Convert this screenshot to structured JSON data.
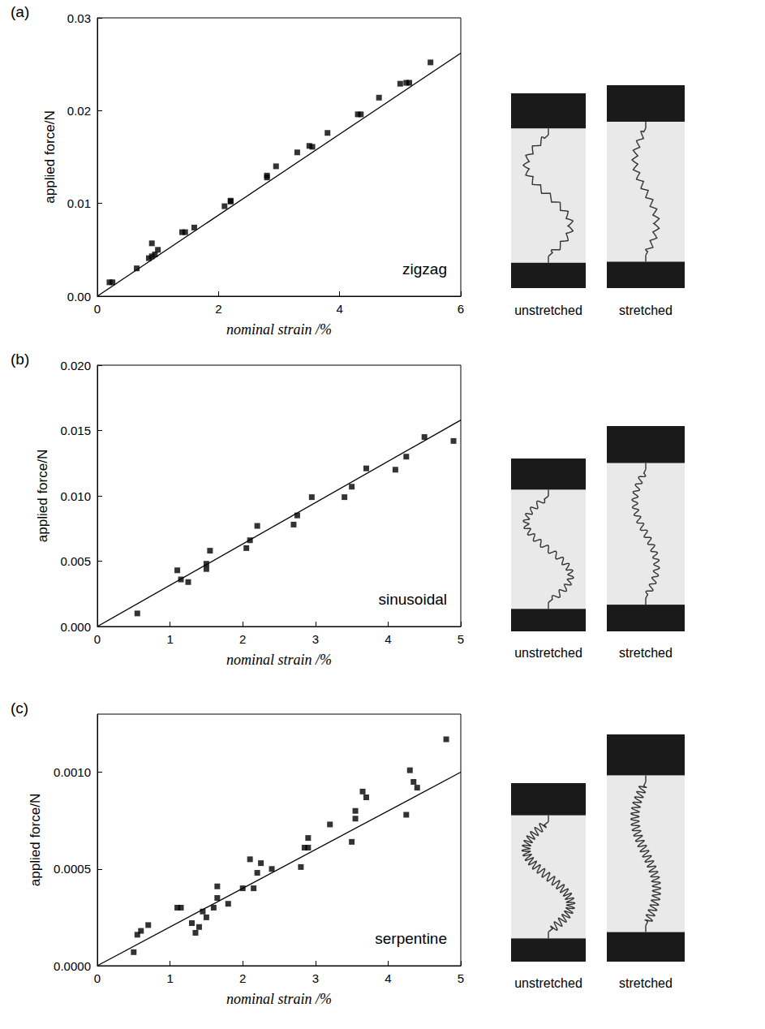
{
  "chart_data": [
    {
      "type": "scatter",
      "panel": "(a)",
      "annotation": "zigzag",
      "x_label": "nominal strain /%",
      "y_label": "applied force/N",
      "xlim": [
        0,
        6
      ],
      "xticks": [
        0,
        2,
        4,
        6
      ],
      "ylim": [
        0,
        0.03
      ],
      "yticks": [
        {
          "value": 0,
          "label": "0.00"
        },
        {
          "value": 0.01,
          "label": "0.01"
        },
        {
          "value": 0.02,
          "label": "0.02"
        },
        {
          "value": 0.03,
          "label": "0.03"
        }
      ],
      "image_captions": [
        "unstretched",
        "stretched"
      ],
      "series": [
        {
          "type": "scatter",
          "marker": "square",
          "color": "#000000",
          "x": [
            0.2,
            0.25,
            0.65,
            0.85,
            0.9,
            0.9,
            0.95,
            1.0,
            1.4,
            1.45,
            1.6,
            2.1,
            2.2,
            2.2,
            2.8,
            2.8,
            2.95,
            3.3,
            3.5,
            3.55,
            3.8,
            4.3,
            4.35,
            4.65,
            5.0,
            5.1,
            5.15,
            5.5
          ],
          "values": [
            0.0015,
            0.0015,
            0.003,
            0.0041,
            0.0057,
            0.0043,
            0.0045,
            0.005,
            0.0069,
            0.0069,
            0.0074,
            0.0097,
            0.0102,
            0.0103,
            0.0128,
            0.013,
            0.014,
            0.0155,
            0.0162,
            0.0161,
            0.0176,
            0.0196,
            0.0196,
            0.0214,
            0.0229,
            0.023,
            0.023,
            0.0252
          ]
        },
        {
          "type": "line",
          "line_style": "solid",
          "color": "#000000",
          "x": [
            0,
            6
          ],
          "values": [
            0,
            0.0262
          ]
        }
      ]
    },
    {
      "type": "scatter",
      "panel": "(b)",
      "annotation": "sinusoidal",
      "x_label": "nominal strain /%",
      "y_label": "applied force/N",
      "xlim": [
        0,
        5
      ],
      "xticks": [
        0,
        1,
        2,
        3,
        4,
        5
      ],
      "ylim": [
        0,
        0.02
      ],
      "yticks": [
        {
          "value": 0,
          "label": "0.000"
        },
        {
          "value": 0.005,
          "label": "0.005"
        },
        {
          "value": 0.01,
          "label": "0.010"
        },
        {
          "value": 0.015,
          "label": "0.015"
        },
        {
          "value": 0.02,
          "label": "0.020"
        }
      ],
      "image_captions": [
        "unstretched",
        "stretched"
      ],
      "series": [
        {
          "type": "scatter",
          "marker": "square",
          "color": "#000000",
          "x": [
            0.55,
            1.1,
            1.15,
            1.25,
            1.5,
            1.5,
            1.55,
            2.05,
            2.1,
            2.2,
            2.7,
            2.75,
            2.95,
            3.4,
            3.5,
            3.7,
            4.1,
            4.25,
            4.5,
            4.9
          ],
          "values": [
            0.001,
            0.0043,
            0.0036,
            0.0034,
            0.0044,
            0.0048,
            0.0058,
            0.006,
            0.0066,
            0.0077,
            0.0078,
            0.0085,
            0.0099,
            0.0099,
            0.0107,
            0.0121,
            0.012,
            0.013,
            0.0145,
            0.0142
          ]
        },
        {
          "type": "line",
          "line_style": "solid",
          "color": "#000000",
          "x": [
            0,
            5
          ],
          "values": [
            0,
            0.0158
          ]
        }
      ]
    },
    {
      "type": "scatter",
      "panel": "(c)",
      "annotation": "serpentine",
      "x_label": "nominal strain /%",
      "y_label": "applied force/N",
      "xlim": [
        0,
        5
      ],
      "xticks": [
        0,
        1,
        2,
        3,
        4,
        5
      ],
      "ylim": [
        0,
        0.0013
      ],
      "yticks": [
        {
          "value": 0,
          "label": "0.0000"
        },
        {
          "value": 0.0005,
          "label": "0.0005"
        },
        {
          "value": 0.001,
          "label": "0.0010"
        }
      ],
      "image_captions": [
        "unstretched",
        "stretched"
      ],
      "series": [
        {
          "type": "scatter",
          "marker": "square",
          "color": "#000000",
          "x": [
            0.5,
            0.55,
            0.6,
            0.7,
            1.1,
            1.15,
            1.3,
            1.35,
            1.4,
            1.45,
            1.5,
            1.6,
            1.65,
            1.65,
            1.8,
            2.0,
            2.1,
            2.15,
            2.2,
            2.25,
            2.4,
            2.8,
            2.85,
            2.9,
            2.9,
            3.2,
            3.5,
            3.55,
            3.55,
            3.65,
            3.7,
            4.25,
            4.3,
            4.35,
            4.4,
            4.8
          ],
          "values": [
            7e-05,
            0.00016,
            0.00018,
            0.00021,
            0.0003,
            0.0003,
            0.00022,
            0.00017,
            0.0002,
            0.00028,
            0.00025,
            0.0003,
            0.00041,
            0.00035,
            0.00032,
            0.0004,
            0.00055,
            0.0004,
            0.00048,
            0.00053,
            0.0005,
            0.00051,
            0.00061,
            0.00061,
            0.00066,
            0.00073,
            0.00064,
            0.00076,
            0.0008,
            0.0009,
            0.00087,
            0.00078,
            0.00101,
            0.00095,
            0.00092,
            0.00117
          ]
        },
        {
          "type": "line",
          "line_style": "solid",
          "color": "#000000",
          "x": [
            0,
            5
          ],
          "values": [
            0,
            0.001
          ]
        }
      ]
    }
  ]
}
